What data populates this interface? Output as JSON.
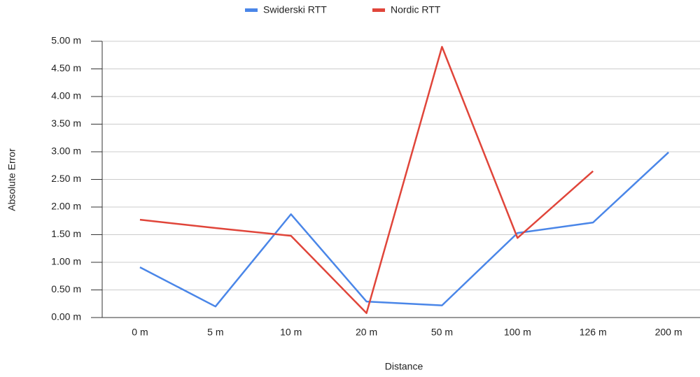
{
  "chart_data": {
    "type": "line",
    "x_label": "Distance",
    "y_label": "Absolute Error",
    "categories": [
      "0 m",
      "5 m",
      "10 m",
      "20 m",
      "50 m",
      "100 m",
      "126 m",
      "200 m"
    ],
    "series": [
      {
        "name": "Swiderski RTT",
        "color": "#4a86e8",
        "values": [
          0.91,
          0.2,
          1.87,
          0.29,
          0.22,
          1.53,
          1.72,
          2.99
        ]
      },
      {
        "name": "Nordic RTT",
        "color": "#e0453a",
        "values": [
          1.77,
          1.62,
          1.48,
          0.08,
          4.9,
          1.44,
          2.65,
          null
        ]
      }
    ],
    "ylim": [
      0,
      5
    ],
    "yticks": [
      {
        "value": 0,
        "label": "0.00 m"
      },
      {
        "value": 0.5,
        "label": "0.50 m"
      },
      {
        "value": 1,
        "label": "1.00 m"
      },
      {
        "value": 1.5,
        "label": "1.50 m"
      },
      {
        "value": 2,
        "label": "2.00 m"
      },
      {
        "value": 2.5,
        "label": "2.50 m"
      },
      {
        "value": 3,
        "label": "3.00 m"
      },
      {
        "value": 3.5,
        "label": "3.50 m"
      },
      {
        "value": 4,
        "label": "4.00 m"
      },
      {
        "value": 4.5,
        "label": "4.50 m"
      },
      {
        "value": 5,
        "label": "5.00 m"
      }
    ],
    "grid": true,
    "legend": "top"
  }
}
